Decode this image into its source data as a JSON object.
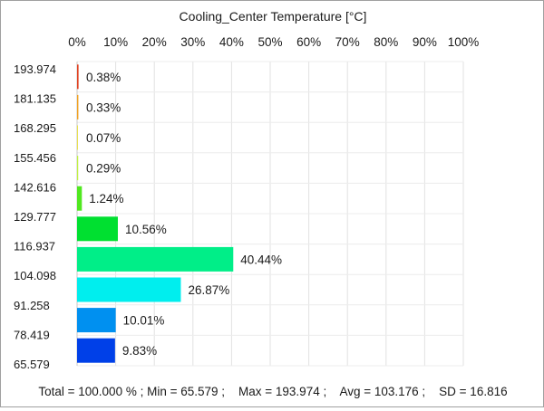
{
  "chart_data": {
    "type": "bar",
    "orientation": "horizontal",
    "title": "Cooling_Center Temperature [°C]",
    "x_ticks": [
      "0%",
      "10%",
      "20%",
      "30%",
      "40%",
      "50%",
      "60%",
      "70%",
      "80%",
      "90%",
      "100%"
    ],
    "xlim": [
      0,
      100
    ],
    "bin_edges": [
      "193.974",
      "181.135",
      "168.295",
      "155.456",
      "142.616",
      "129.777",
      "116.937",
      "104.098",
      "91.258",
      "78.419",
      "65.579"
    ],
    "values": [
      0.38,
      0.33,
      0.07,
      0.29,
      1.24,
      10.56,
      40.44,
      26.87,
      10.01,
      9.83
    ],
    "labels": [
      "0.38%",
      "0.33%",
      "0.07%",
      "0.29%",
      "1.24%",
      "10.56%",
      "40.44%",
      "26.87%",
      "10.01%",
      "9.83%"
    ],
    "colors": [
      "#e04020",
      "#f0a020",
      "#e8e050",
      "#c0f040",
      "#50e820",
      "#00e030",
      "#00ee88",
      "#00eeee",
      "#0090f0",
      "#0040e8"
    ],
    "grid": true
  },
  "footer": {
    "text": "Total = 100.000 % ; Min = 65.579 ;    Max = 193.974 ;    Avg = 103.176 ;    SD = 16.816"
  }
}
